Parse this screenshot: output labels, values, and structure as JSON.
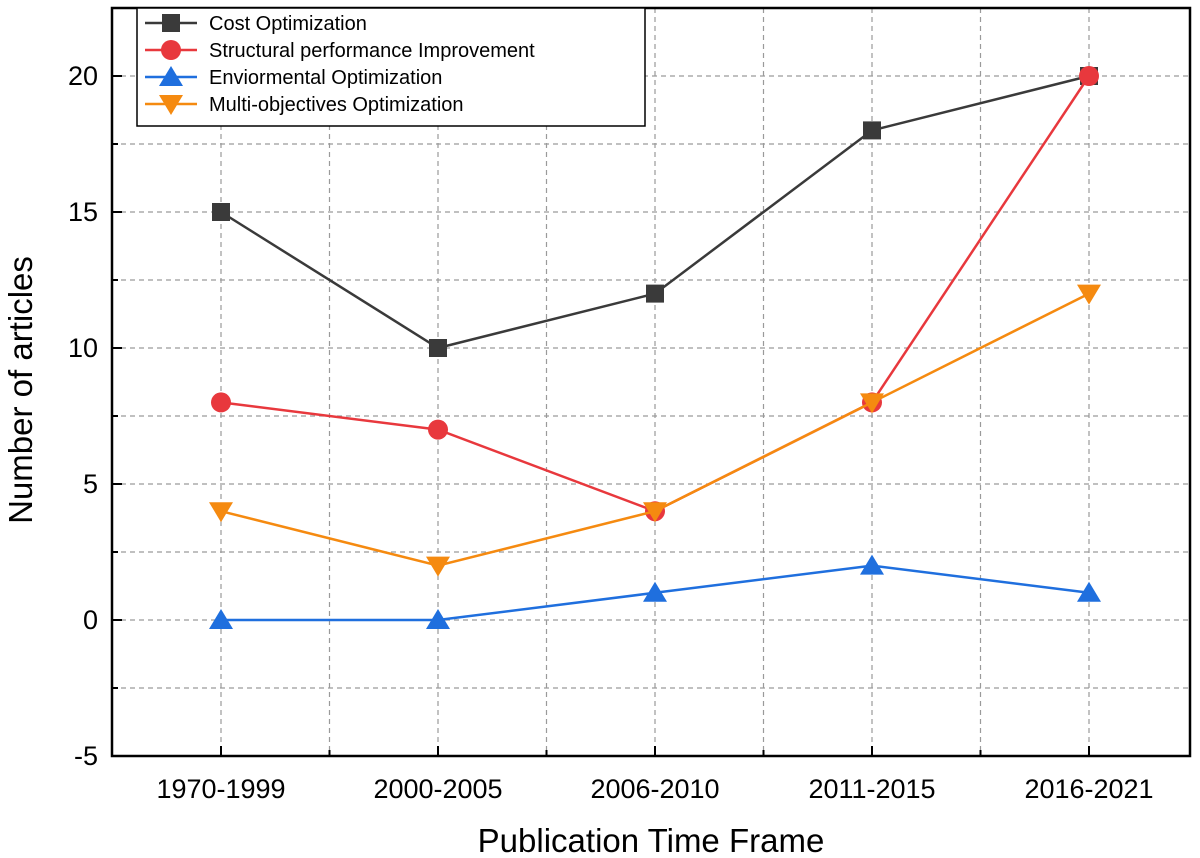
{
  "chart_data": {
    "type": "line",
    "title": "",
    "xlabel": "Publication Time Frame",
    "ylabel": "Number of articles",
    "categories": [
      "1970-1999",
      "2000-2005",
      "2006-2010",
      "2011-2015",
      "2016-2021"
    ],
    "ylim": [
      -5,
      22.5
    ],
    "yticks": [
      -5,
      0,
      5,
      10,
      15,
      20
    ],
    "grid": true,
    "legend_position": "top-left",
    "series": [
      {
        "name": "Cost Optimization",
        "color": "#3a3a3a",
        "marker": "square",
        "values": [
          15,
          10,
          12,
          18,
          20
        ]
      },
      {
        "name": "Structural performance Improvement",
        "color": "#e8383d",
        "marker": "circle",
        "values": [
          8,
          7,
          4,
          8,
          20
        ]
      },
      {
        "name": "Enviormental Optimization",
        "color": "#1f6fde",
        "marker": "triangle-up",
        "values": [
          0,
          0,
          1,
          2,
          1
        ]
      },
      {
        "name": "Multi-objectives Optimization",
        "color": "#f58a10",
        "marker": "triangle-down",
        "values": [
          4,
          2,
          4,
          8,
          12
        ]
      }
    ]
  }
}
